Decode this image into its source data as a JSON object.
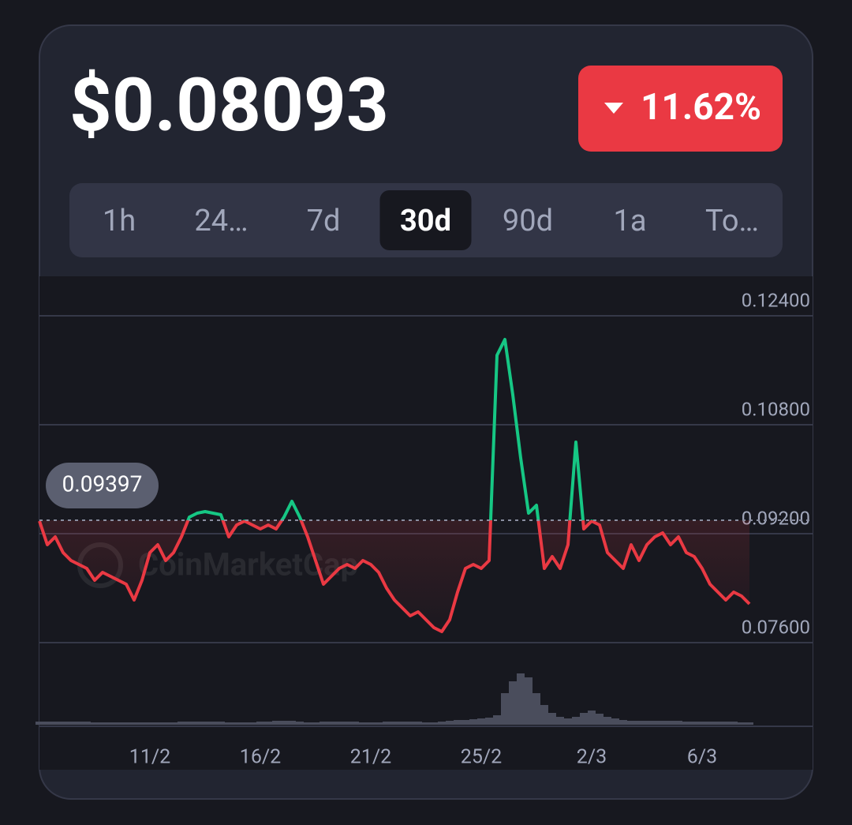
{
  "header": {
    "price": "$0.08093",
    "change": "11.62%",
    "tabs": [
      "1h",
      "24…",
      "7d",
      "30d",
      "90d",
      "1a",
      "To…"
    ],
    "selected_tab": 3
  },
  "chart_data": {
    "type": "line",
    "watermark": "CoinMarketCap",
    "series": [
      {
        "name": "Price",
        "color_up": "#16c784",
        "color_down": "#ea3943",
        "values": [
          0.09386,
          0.09038,
          0.09154,
          0.08922,
          0.08806,
          0.08748,
          0.0869,
          0.08516,
          0.08632,
          0.08574,
          0.08516,
          0.08458,
          0.08226,
          0.08516,
          0.08922,
          0.09038,
          0.08806,
          0.08922,
          0.09154,
          0.09443,
          0.09501,
          0.09525,
          0.09501,
          0.09478,
          0.09154,
          0.09328,
          0.09386,
          0.09328,
          0.0927,
          0.09328,
          0.0927,
          0.09443,
          0.09675,
          0.09443,
          0.09154,
          0.08806,
          0.08458,
          0.08574,
          0.0869,
          0.08748,
          0.0869,
          0.08806,
          0.08748,
          0.08632,
          0.084,
          0.08226,
          0.0811,
          0.07994,
          0.08052,
          0.07936,
          0.0782,
          0.07762,
          0.07936,
          0.08342,
          0.0869,
          0.08748,
          0.0869,
          0.08806,
          0.1182,
          0.12052,
          0.11241,
          0.10313,
          0.09501,
          0.09617,
          0.0869,
          0.08864,
          0.0869,
          0.09038,
          0.10545,
          0.0927,
          0.09386,
          0.09328,
          0.08922,
          0.08806,
          0.0869,
          0.09038,
          0.08806,
          0.09038,
          0.09154,
          0.09212,
          0.09038,
          0.09154,
          0.08922,
          0.08864,
          0.0869,
          0.08458,
          0.08342,
          0.08226,
          0.08342,
          0.08284,
          0.08168
        ]
      }
    ],
    "volume": [
      4,
      4,
      4,
      4,
      4,
      4,
      4,
      3,
      3,
      3,
      3,
      3,
      3,
      3,
      3,
      3,
      3,
      3,
      4,
      4,
      4,
      4,
      4,
      4,
      3,
      3,
      3,
      3,
      4,
      4,
      5,
      5,
      5,
      4,
      3,
      3,
      4,
      4,
      4,
      4,
      4,
      3,
      3,
      3,
      4,
      4,
      4,
      4,
      4,
      3,
      3,
      4,
      5,
      6,
      6,
      7,
      8,
      9,
      12,
      40,
      55,
      65,
      60,
      40,
      25,
      15,
      10,
      8,
      10,
      15,
      18,
      14,
      10,
      8,
      6,
      5,
      5,
      5,
      5,
      5,
      5,
      5,
      4,
      4,
      4,
      4,
      4,
      4,
      4,
      3,
      3
    ],
    "baseline": 0.09397,
    "xlim": [
      0,
      90
    ],
    "xticks": [
      {
        "value": 14,
        "label": "11/2"
      },
      {
        "value": 28,
        "label": "16/2"
      },
      {
        "value": 42,
        "label": "21/2"
      },
      {
        "value": 56,
        "label": "25/2"
      },
      {
        "value": 70,
        "label": "2/3"
      },
      {
        "value": 84,
        "label": "6/3"
      }
    ],
    "ylim": [
      0.076,
      0.124
    ],
    "yticks": [
      {
        "value": 0.124,
        "label": "0.12400"
      },
      {
        "value": 0.108,
        "label": "0.10800"
      },
      {
        "value": 0.092,
        "label": "0.09200"
      },
      {
        "value": 0.076,
        "label": "0.07600"
      }
    ],
    "grid": true
  }
}
